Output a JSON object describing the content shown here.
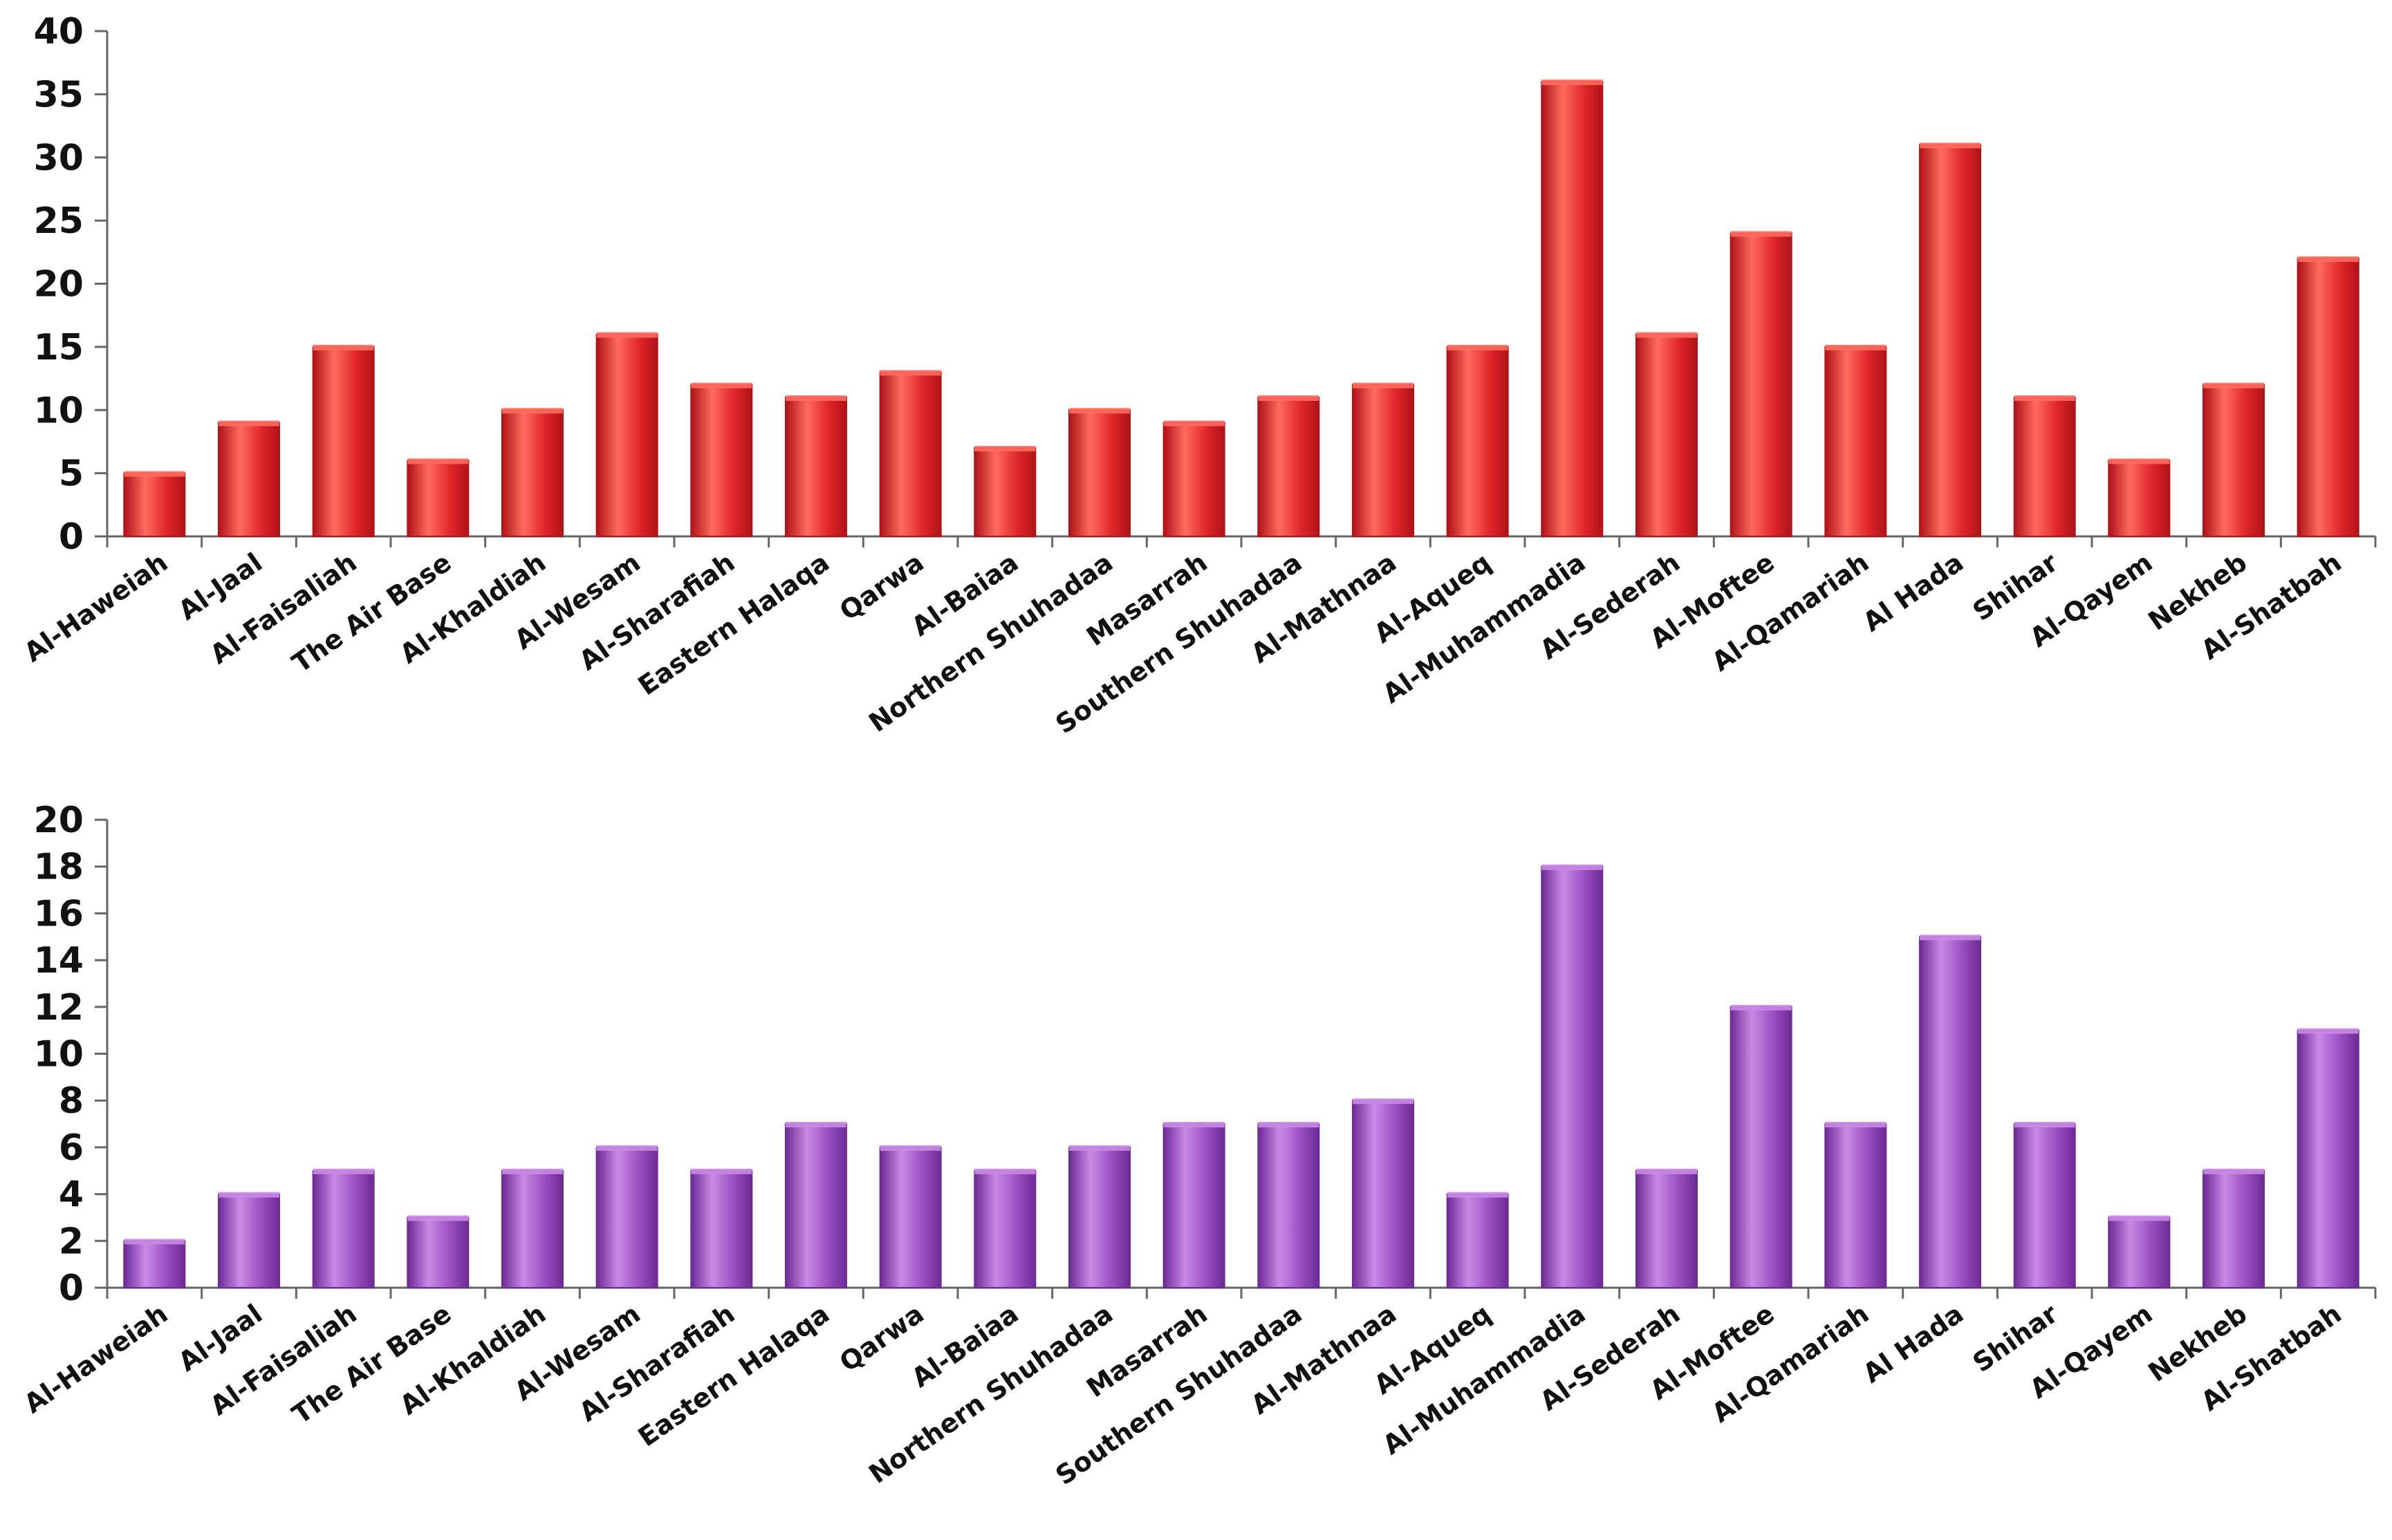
{
  "chart_data": [
    {
      "type": "bar",
      "categories": [
        "Al-Haweiah",
        "Al-Jaal",
        "Al-Faisaliah",
        "The Air Base",
        "Al-Khaldiah",
        "Al-Wesam",
        "Al-Sharafiah",
        "Eastern Halaqa",
        "Qarwa",
        "Al-Baiaa",
        "Northern Shuhadaa",
        "Masarrah",
        "Southern Shuhadaa",
        "Al-Mathnaa",
        "Al-Aqueq",
        "Al-Muhammadia",
        "Al-Sederah",
        "Al-Moftee",
        "Al-Qamariah",
        "Al Hada",
        "Shihar",
        "Al-Qayem",
        "Nekheb",
        "Al-Shatbah"
      ],
      "values": [
        5,
        9,
        15,
        6,
        10,
        16,
        12,
        11,
        13,
        7,
        10,
        9,
        11,
        12,
        15,
        36,
        16,
        24,
        15,
        31,
        11,
        6,
        12,
        22
      ],
      "yticks": [
        "0",
        "5",
        "10",
        "15",
        "20",
        "25",
        "30",
        "35",
        "40"
      ],
      "ylim": [
        0,
        40
      ],
      "title": "",
      "xlabel": "",
      "ylabel": "",
      "color": "#e0262a",
      "color_light": "#ff6b5e",
      "color_dark": "#b01218"
    },
    {
      "type": "bar",
      "categories": [
        "Al-Haweiah",
        "Al-Jaal",
        "Al-Faisaliah",
        "The Air Base",
        "Al-Khaldiah",
        "Al-Wesam",
        "Al-Sharafiah",
        "Eastern Halaqa",
        "Qarwa",
        "Al-Baiaa",
        "Northern Shuhadaa",
        "Masarrah",
        "Southern Shuhadaa",
        "Al-Mathnaa",
        "Al-Aqueq",
        "Al-Muhammadia",
        "Al-Sederah",
        "Al-Moftee",
        "Al-Qamariah",
        "Al Hada",
        "Shihar",
        "Al-Qayem",
        "Nekheb",
        "Al-Shatbah"
      ],
      "values": [
        2,
        4,
        5,
        3,
        5,
        6,
        5,
        7,
        6,
        5,
        6,
        7,
        7,
        8,
        4,
        18,
        5,
        12,
        7,
        15,
        7,
        3,
        5,
        11
      ],
      "yticks": [
        "0",
        "2",
        "4",
        "6",
        "8",
        "10",
        "12",
        "14",
        "16",
        "18",
        "20"
      ],
      "ylim": [
        0,
        20
      ],
      "title": "",
      "xlabel": "",
      "ylabel": "",
      "color": "#9a4fc0",
      "color_light": "#c98ae6",
      "color_dark": "#6d2a95"
    }
  ]
}
